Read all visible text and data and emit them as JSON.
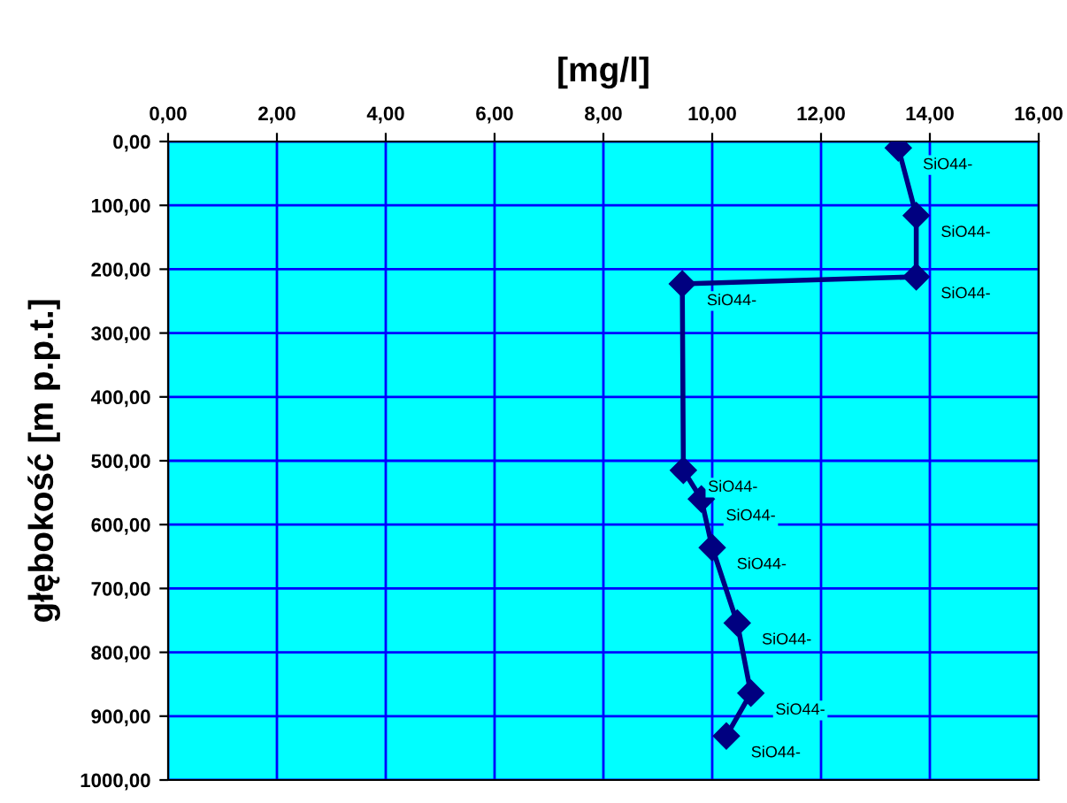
{
  "chart_data": {
    "type": "line",
    "xlabel": "[mg/l]",
    "ylabel": "głębokość [m p.p.t.]",
    "x": [
      13.42,
      13.75,
      13.75,
      9.45,
      9.47,
      9.8,
      10.0,
      10.46,
      10.71,
      10.26
    ],
    "series": [
      {
        "color": "#000080",
        "values": [
          10,
          116,
          212,
          223,
          515,
          560,
          636,
          754,
          864,
          931
        ]
      }
    ],
    "annotations": [
      {
        "text": "SiO44-",
        "x": 13.42,
        "y": 10
      },
      {
        "text": "SiO44-",
        "x": 13.75,
        "y": 116
      },
      {
        "text": "SiO44-",
        "x": 13.75,
        "y": 212
      },
      {
        "text": "SiO44-",
        "x": 9.45,
        "y": 223
      },
      {
        "text": "SiO44-",
        "x": 9.47,
        "y": 515
      },
      {
        "text": "SiO44-",
        "x": 9.8,
        "y": 560
      },
      {
        "text": "SiO44-",
        "x": 10.0,
        "y": 636
      },
      {
        "text": "SiO44-",
        "x": 10.46,
        "y": 754
      },
      {
        "text": "SiO44-",
        "x": 10.71,
        "y": 864
      },
      {
        "text": "SiO44-",
        "x": 10.26,
        "y": 931
      }
    ],
    "xlim": [
      0,
      16
    ],
    "ylim": [
      1000,
      0
    ],
    "xticks": [
      {
        "value": 0,
        "label": "0,00"
      },
      {
        "value": 2,
        "label": "2,00"
      },
      {
        "value": 4,
        "label": "4,00"
      },
      {
        "value": 6,
        "label": "6,00"
      },
      {
        "value": 8,
        "label": "8,00"
      },
      {
        "value": 10,
        "label": "10,00"
      },
      {
        "value": 12,
        "label": "12,00"
      },
      {
        "value": 14,
        "label": "14,00"
      },
      {
        "value": 16,
        "label": "16,00"
      }
    ],
    "yticks": [
      {
        "value": 0,
        "label": "0,00"
      },
      {
        "value": 100,
        "label": "100,00"
      },
      {
        "value": 200,
        "label": "200,00"
      },
      {
        "value": 300,
        "label": "300,00"
      },
      {
        "value": 400,
        "label": "400,00"
      },
      {
        "value": 500,
        "label": "500,00"
      },
      {
        "value": 600,
        "label": "600,00"
      },
      {
        "value": 700,
        "label": "700,00"
      },
      {
        "value": 800,
        "label": "800,00"
      },
      {
        "value": 900,
        "label": "900,00"
      },
      {
        "value": 1000,
        "label": "1000,00"
      }
    ],
    "grid": true,
    "marker": "diamond",
    "line_style": "solid",
    "legend": false
  }
}
